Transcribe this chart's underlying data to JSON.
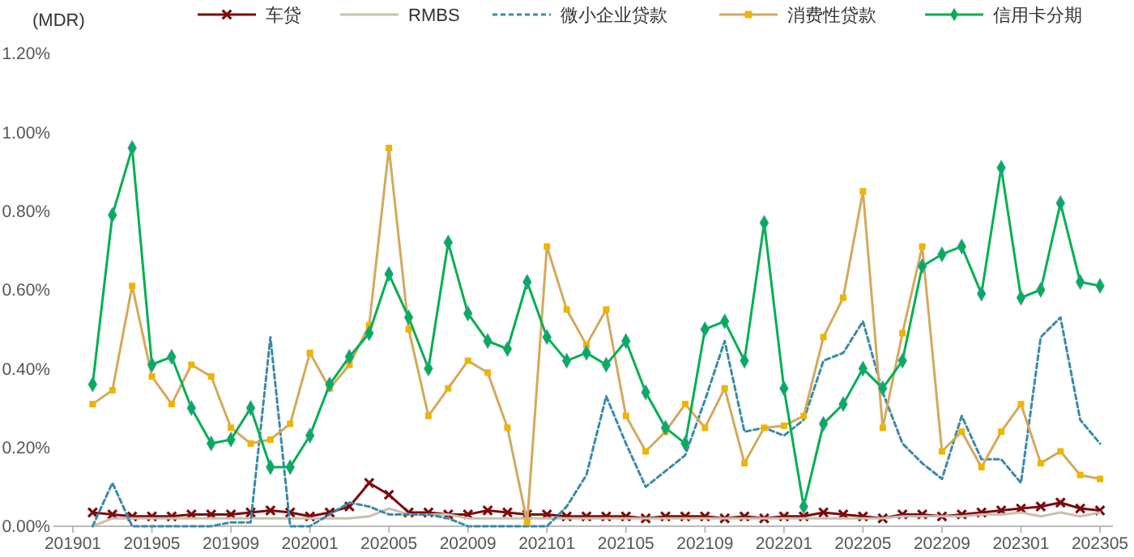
{
  "chart_data": {
    "type": "line",
    "ylabel": "(MDR)",
    "categories": [
      "201901",
      null,
      null,
      null,
      "201905",
      null,
      null,
      null,
      "201909",
      null,
      null,
      null,
      "202001",
      null,
      null,
      null,
      "202005",
      null,
      null,
      null,
      "202009",
      null,
      null,
      null,
      "202101",
      null,
      null,
      null,
      "202105",
      null,
      null,
      null,
      "202109",
      null,
      null,
      null,
      "202201",
      null,
      null,
      null,
      "202205",
      null,
      null,
      null,
      "202209",
      null,
      null,
      null,
      "202301",
      null,
      null,
      null,
      "202305"
    ],
    "ylim": [
      0,
      1.2
    ],
    "yticks": [
      {
        "value": 0,
        "label": "0.00%"
      },
      {
        "value": 0.2,
        "label": "0.20%"
      },
      {
        "value": 0.4,
        "label": "0.40%"
      },
      {
        "value": 0.6,
        "label": "0.60%"
      },
      {
        "value": 0.8,
        "label": "0.80%"
      },
      {
        "value": 1.0,
        "label": "1.00%"
      },
      {
        "value": 1.2,
        "label": "1.20%"
      }
    ],
    "grid": false,
    "legend": "top",
    "series": [
      {
        "name": "车贷",
        "color": "#7b0c0c",
        "marker": "cross",
        "line_style": "solid",
        "values": [
          null,
          0.035,
          0.03,
          0.025,
          0.025,
          0.025,
          0.03,
          0.03,
          0.03,
          0.035,
          0.04,
          0.035,
          0.025,
          0.035,
          0.05,
          0.11,
          0.08,
          0.035,
          0.035,
          0.03,
          0.03,
          0.04,
          0.035,
          0.03,
          0.03,
          0.025,
          0.025,
          0.025,
          0.025,
          0.02,
          0.025,
          0.025,
          0.025,
          0.02,
          0.025,
          0.02,
          0.025,
          0.025,
          0.035,
          0.03,
          0.025,
          0.02,
          0.03,
          0.03,
          0.025,
          0.03,
          0.035,
          0.04,
          0.045,
          0.05,
          0.06,
          0.045,
          0.04
        ]
      },
      {
        "name": "RMBS",
        "color": "#c9c0b0",
        "marker": "none",
        "line_style": "solid",
        "values": [
          null,
          0,
          0.02,
          0.02,
          0.02,
          0.02,
          0.02,
          0.02,
          0.02,
          0.02,
          0.02,
          0.02,
          0.02,
          0.02,
          0.02,
          0.025,
          0.045,
          0.03,
          0.03,
          0.03,
          0.02,
          0.02,
          0.02,
          0.02,
          0.02,
          0.02,
          0.02,
          0.02,
          0.02,
          0.02,
          0.02,
          0.02,
          0.02,
          0.02,
          0.02,
          0.02,
          0.02,
          0.02,
          0.02,
          0.02,
          0.02,
          0.02,
          0.025,
          0.025,
          0.025,
          0.025,
          0.03,
          0.03,
          0.035,
          0.025,
          0.035,
          0.025,
          0.035
        ]
      },
      {
        "name": "微小企业贷款",
        "color": "#3b8aa8",
        "marker": "none",
        "line_style": "dashed",
        "values": [
          null,
          0,
          0.11,
          0,
          0,
          0,
          0,
          0,
          0.01,
          0.01,
          0.48,
          0,
          0,
          0.03,
          0.06,
          0.05,
          0.03,
          0.03,
          0.03,
          0.02,
          0,
          0,
          0,
          0,
          0,
          0.05,
          0.13,
          0.33,
          0.21,
          0.1,
          0.14,
          0.18,
          0.32,
          0.47,
          0.24,
          0.25,
          0.23,
          0.27,
          0.42,
          0.44,
          0.52,
          0.34,
          0.21,
          0.16,
          0.12,
          0.28,
          0.17,
          0.17,
          0.11,
          0.48,
          0.53,
          0.27,
          0.21
        ]
      },
      {
        "name": "消费性贷款",
        "color": "#d4a95c",
        "marker": "square",
        "line_style": "solid",
        "values": [
          null,
          0.31,
          0.345,
          0.61,
          0.38,
          0.31,
          0.41,
          0.38,
          0.25,
          0.21,
          0.22,
          0.26,
          0.44,
          0.35,
          0.41,
          0.51,
          0.96,
          0.5,
          0.28,
          0.35,
          0.42,
          0.39,
          0.25,
          0.01,
          0.71,
          0.55,
          0.46,
          0.55,
          0.28,
          0.19,
          0.24,
          0.31,
          0.25,
          0.35,
          0.16,
          0.25,
          0.255,
          0.28,
          0.48,
          0.58,
          0.85,
          0.25,
          0.49,
          0.71,
          0.19,
          0.24,
          0.15,
          0.24,
          0.31,
          0.16,
          0.19,
          0.13,
          0.12
        ]
      },
      {
        "name": "信用卡分期",
        "color": "#00b050",
        "marker": "diamond",
        "line_style": "solid",
        "values": [
          null,
          0.36,
          0.79,
          0.96,
          0.41,
          0.43,
          0.3,
          0.21,
          0.22,
          0.3,
          0.15,
          0.15,
          0.23,
          0.36,
          0.43,
          0.49,
          0.64,
          0.53,
          0.4,
          0.72,
          0.54,
          0.47,
          0.45,
          0.62,
          0.48,
          0.42,
          0.44,
          0.41,
          0.47,
          0.34,
          0.25,
          0.21,
          0.5,
          0.52,
          0.42,
          0.77,
          0.35,
          0.05,
          0.26,
          0.31,
          0.4,
          0.35,
          0.42,
          0.66,
          0.69,
          0.71,
          0.59,
          0.91,
          0.58,
          0.6,
          0.82,
          0.62,
          0.61
        ]
      }
    ]
  }
}
